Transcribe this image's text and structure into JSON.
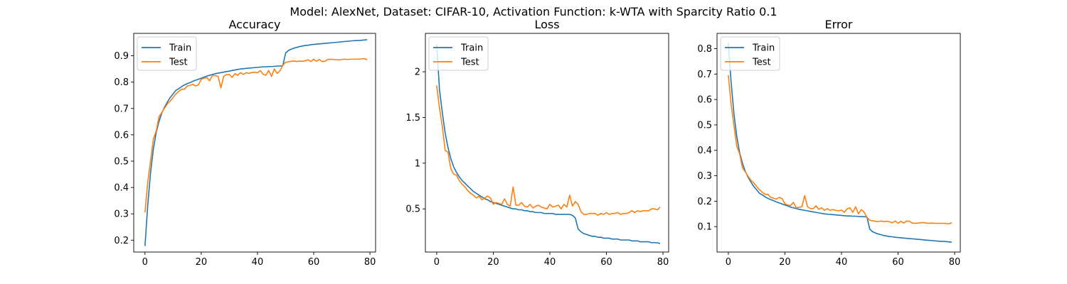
{
  "suptitle": "Model: AlexNet, Dataset: CIFAR-10, Activation Function: k-WTA with Sparcity Ratio 0.1",
  "colors": {
    "train": "#1f77b4",
    "test": "#ff7f0e"
  },
  "chart_data": [
    {
      "type": "line",
      "title": "Accuracy",
      "xlabel": "",
      "ylabel": "",
      "xlim": [
        -4,
        82
      ],
      "ylim": [
        0.155,
        0.985
      ],
      "xticks": [
        0,
        20,
        40,
        60,
        80
      ],
      "yticks": [
        0.2,
        0.3,
        0.4,
        0.5,
        0.6,
        0.7,
        0.8,
        0.9
      ],
      "legend": "upper left",
      "series": [
        {
          "name": "Train",
          "values": [
            0.178,
            0.335,
            0.458,
            0.547,
            0.609,
            0.651,
            0.683,
            0.706,
            0.725,
            0.742,
            0.755,
            0.769,
            0.775,
            0.783,
            0.789,
            0.794,
            0.798,
            0.803,
            0.807,
            0.811,
            0.815,
            0.819,
            0.823,
            0.826,
            0.829,
            0.832,
            0.834,
            0.836,
            0.838,
            0.84,
            0.842,
            0.844,
            0.846,
            0.848,
            0.85,
            0.851,
            0.852,
            0.853,
            0.854,
            0.855,
            0.856,
            0.857,
            0.858,
            0.858,
            0.859,
            0.859,
            0.86,
            0.861,
            0.861,
            0.862,
            0.91,
            0.92,
            0.925,
            0.929,
            0.932,
            0.935,
            0.937,
            0.939,
            0.94,
            0.942,
            0.943,
            0.944,
            0.945,
            0.946,
            0.947,
            0.948,
            0.949,
            0.95,
            0.951,
            0.952,
            0.953,
            0.954,
            0.955,
            0.956,
            0.957,
            0.958,
            0.958,
            0.959,
            0.96,
            0.961
          ]
        },
        {
          "name": "Test",
          "values": [
            0.305,
            0.421,
            0.503,
            0.585,
            0.614,
            0.669,
            0.685,
            0.702,
            0.718,
            0.728,
            0.742,
            0.755,
            0.765,
            0.773,
            0.773,
            0.785,
            0.788,
            0.792,
            0.785,
            0.79,
            0.81,
            0.815,
            0.817,
            0.805,
            0.826,
            0.824,
            0.822,
            0.778,
            0.822,
            0.829,
            0.829,
            0.818,
            0.832,
            0.826,
            0.836,
            0.829,
            0.836,
            0.833,
            0.836,
            0.838,
            0.835,
            0.844,
            0.83,
            0.826,
            0.844,
            0.822,
            0.85,
            0.833,
            0.843,
            0.864,
            0.875,
            0.877,
            0.879,
            0.88,
            0.878,
            0.88,
            0.879,
            0.881,
            0.885,
            0.878,
            0.887,
            0.879,
            0.886,
            0.878,
            0.879,
            0.886,
            0.887,
            0.886,
            0.885,
            0.884,
            0.886,
            0.887,
            0.886,
            0.887,
            0.887,
            0.887,
            0.887,
            0.888,
            0.889,
            0.885
          ]
        }
      ]
    },
    {
      "type": "line",
      "title": "Loss",
      "xlabel": "",
      "ylabel": "",
      "xlim": [
        -4,
        82
      ],
      "ylim": [
        0.028,
        2.42
      ],
      "xticks": [
        0,
        20,
        40,
        60,
        80
      ],
      "yticks": [
        0.5,
        1.0,
        1.5,
        2.0
      ],
      "legend": "upper left",
      "series": [
        {
          "name": "Train",
          "values": [
            2.3,
            1.8,
            1.55,
            1.33,
            1.17,
            1.05,
            0.96,
            0.9,
            0.85,
            0.81,
            0.78,
            0.75,
            0.72,
            0.69,
            0.67,
            0.65,
            0.63,
            0.61,
            0.6,
            0.58,
            0.57,
            0.56,
            0.55,
            0.54,
            0.53,
            0.52,
            0.51,
            0.5,
            0.5,
            0.49,
            0.49,
            0.48,
            0.48,
            0.47,
            0.47,
            0.46,
            0.46,
            0.46,
            0.45,
            0.45,
            0.45,
            0.45,
            0.44,
            0.44,
            0.44,
            0.44,
            0.44,
            0.44,
            0.43,
            0.4,
            0.28,
            0.25,
            0.23,
            0.22,
            0.21,
            0.2,
            0.2,
            0.19,
            0.19,
            0.18,
            0.18,
            0.18,
            0.17,
            0.17,
            0.17,
            0.16,
            0.16,
            0.16,
            0.16,
            0.15,
            0.15,
            0.15,
            0.14,
            0.14,
            0.14,
            0.14,
            0.13,
            0.13,
            0.13,
            0.12
          ]
        },
        {
          "name": "Test",
          "values": [
            1.85,
            1.6,
            1.4,
            1.14,
            1.12,
            0.94,
            0.88,
            0.87,
            0.81,
            0.77,
            0.74,
            0.7,
            0.67,
            0.65,
            0.62,
            0.64,
            0.6,
            0.62,
            0.64,
            0.62,
            0.55,
            0.57,
            0.56,
            0.55,
            0.61,
            0.55,
            0.53,
            0.74,
            0.54,
            0.54,
            0.57,
            0.53,
            0.52,
            0.55,
            0.51,
            0.53,
            0.54,
            0.52,
            0.51,
            0.5,
            0.55,
            0.52,
            0.53,
            0.54,
            0.5,
            0.55,
            0.52,
            0.65,
            0.53,
            0.58,
            0.55,
            0.47,
            0.44,
            0.44,
            0.45,
            0.45,
            0.45,
            0.43,
            0.45,
            0.44,
            0.46,
            0.44,
            0.45,
            0.45,
            0.46,
            0.44,
            0.45,
            0.45,
            0.46,
            0.48,
            0.46,
            0.48,
            0.47,
            0.48,
            0.48,
            0.48,
            0.5,
            0.5,
            0.49,
            0.52
          ]
        }
      ]
    },
    {
      "type": "line",
      "title": "Error",
      "xlabel": "",
      "ylabel": "",
      "xlim": [
        -4,
        82
      ],
      "ylim": [
        0.0,
        0.86
      ],
      "xticks": [
        0,
        20,
        40,
        60,
        80
      ],
      "yticks": [
        0.1,
        0.2,
        0.3,
        0.4,
        0.5,
        0.6,
        0.7,
        0.8
      ],
      "legend": "upper left",
      "series": [
        {
          "name": "Train",
          "values": [
            0.822,
            0.665,
            0.542,
            0.453,
            0.391,
            0.349,
            0.317,
            0.294,
            0.275,
            0.258,
            0.245,
            0.231,
            0.225,
            0.217,
            0.211,
            0.206,
            0.202,
            0.197,
            0.193,
            0.189,
            0.185,
            0.181,
            0.177,
            0.174,
            0.171,
            0.168,
            0.166,
            0.164,
            0.162,
            0.16,
            0.158,
            0.156,
            0.154,
            0.152,
            0.15,
            0.149,
            0.148,
            0.147,
            0.146,
            0.145,
            0.144,
            0.143,
            0.142,
            0.142,
            0.141,
            0.141,
            0.14,
            0.139,
            0.139,
            0.138,
            0.09,
            0.08,
            0.075,
            0.071,
            0.068,
            0.065,
            0.063,
            0.061,
            0.06,
            0.058,
            0.057,
            0.056,
            0.055,
            0.054,
            0.053,
            0.052,
            0.051,
            0.05,
            0.049,
            0.048,
            0.047,
            0.046,
            0.045,
            0.044,
            0.043,
            0.042,
            0.042,
            0.041,
            0.04,
            0.039
          ]
        },
        {
          "name": "Test",
          "values": [
            0.695,
            0.579,
            0.497,
            0.415,
            0.386,
            0.331,
            0.315,
            0.298,
            0.282,
            0.272,
            0.258,
            0.245,
            0.235,
            0.227,
            0.227,
            0.215,
            0.212,
            0.208,
            0.215,
            0.21,
            0.19,
            0.185,
            0.183,
            0.195,
            0.174,
            0.176,
            0.178,
            0.222,
            0.178,
            0.171,
            0.171,
            0.182,
            0.168,
            0.174,
            0.164,
            0.171,
            0.164,
            0.167,
            0.164,
            0.162,
            0.165,
            0.156,
            0.17,
            0.174,
            0.156,
            0.178,
            0.15,
            0.167,
            0.157,
            0.136,
            0.125,
            0.123,
            0.121,
            0.12,
            0.122,
            0.12,
            0.121,
            0.119,
            0.115,
            0.122,
            0.113,
            0.121,
            0.114,
            0.122,
            0.121,
            0.114,
            0.113,
            0.114,
            0.115,
            0.116,
            0.114,
            0.113,
            0.114,
            0.113,
            0.113,
            0.113,
            0.113,
            0.112,
            0.111,
            0.115
          ]
        }
      ]
    }
  ]
}
